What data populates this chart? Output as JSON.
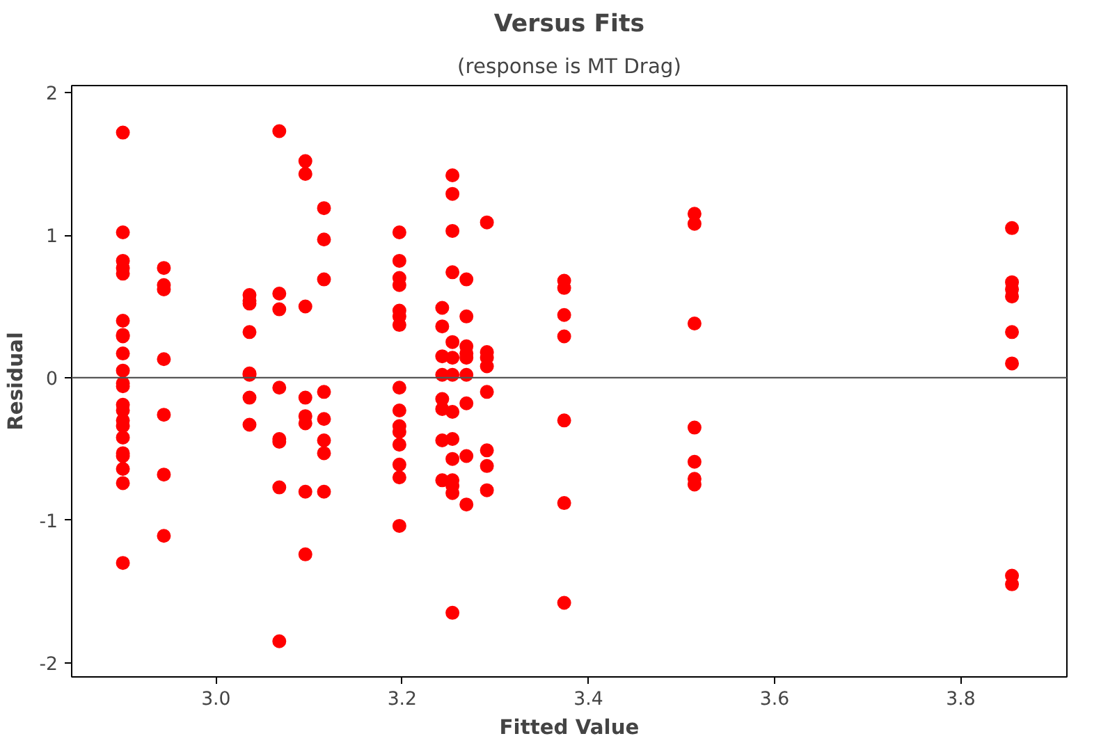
{
  "chart_data": {
    "type": "scatter",
    "title": "Versus Fits",
    "subtitle": "(response is MT Drag)",
    "xlabel": "Fitted Value",
    "ylabel": "Residual",
    "marker": "circle",
    "grid": false,
    "xlim": [
      2.845,
      3.914
    ],
    "ylim": [
      -2.1,
      2.05
    ],
    "xticks": [
      {
        "value": 3,
        "label": "3.0"
      },
      {
        "value": 3.2,
        "label": "3.2"
      },
      {
        "value": 3.4,
        "label": "3.4"
      },
      {
        "value": 3.6,
        "label": "3.6"
      },
      {
        "value": 3.8,
        "label": "3.8"
      }
    ],
    "yticks": [
      -2,
      -1,
      0,
      1,
      2
    ],
    "ref_lines": [
      {
        "axis": "y",
        "value": 0,
        "color": "#555555"
      }
    ],
    "series": [
      {
        "color": "#ff0000",
        "x": [
          2.9,
          2.9,
          2.9,
          2.9,
          2.9,
          2.9,
          2.9,
          2.9,
          2.9,
          2.9,
          2.9,
          2.9,
          2.9,
          2.9,
          2.9,
          2.9,
          2.9,
          2.9,
          2.9,
          2.9,
          2.9,
          2.9,
          2.944,
          2.944,
          2.944,
          2.944,
          2.944,
          2.944,
          2.944,
          3.036,
          3.036,
          3.036,
          3.036,
          3.036,
          3.036,
          3.036,
          3.036,
          3.068,
          3.068,
          3.068,
          3.068,
          3.068,
          3.068,
          3.068,
          3.068,
          3.096,
          3.096,
          3.096,
          3.096,
          3.096,
          3.096,
          3.096,
          3.096,
          3.116,
          3.116,
          3.116,
          3.116,
          3.116,
          3.116,
          3.116,
          3.116,
          3.197,
          3.197,
          3.197,
          3.197,
          3.197,
          3.197,
          3.197,
          3.197,
          3.197,
          3.197,
          3.197,
          3.197,
          3.197,
          3.197,
          3.197,
          3.243,
          3.243,
          3.243,
          3.243,
          3.243,
          3.243,
          3.243,
          3.243,
          3.254,
          3.254,
          3.254,
          3.254,
          3.254,
          3.254,
          3.254,
          3.254,
          3.254,
          3.254,
          3.254,
          3.254,
          3.254,
          3.254,
          3.269,
          3.269,
          3.269,
          3.269,
          3.269,
          3.269,
          3.269,
          3.269,
          3.269,
          3.291,
          3.291,
          3.291,
          3.291,
          3.291,
          3.291,
          3.291,
          3.291,
          3.374,
          3.374,
          3.374,
          3.374,
          3.374,
          3.374,
          3.374,
          3.514,
          3.514,
          3.514,
          3.514,
          3.514,
          3.514,
          3.514,
          3.855,
          3.855,
          3.855,
          3.855,
          3.855,
          3.855,
          3.855,
          3.855
        ],
        "values": [
          1.72,
          1.02,
          0.82,
          0.77,
          0.73,
          0.4,
          0.3,
          0.29,
          0.17,
          0.05,
          -0.04,
          -0.06,
          -0.19,
          -0.23,
          -0.3,
          -0.34,
          -0.42,
          -0.53,
          -0.55,
          -0.64,
          -0.74,
          -1.3,
          0.77,
          0.65,
          0.62,
          0.13,
          -0.26,
          -0.68,
          -1.11,
          0.58,
          0.54,
          0.52,
          0.32,
          0.03,
          0.02,
          -0.14,
          -0.33,
          1.73,
          0.59,
          0.48,
          -0.07,
          -0.43,
          -0.45,
          -0.77,
          -1.85,
          1.52,
          1.43,
          0.5,
          -0.14,
          -0.27,
          -0.32,
          -0.8,
          -1.24,
          1.19,
          0.97,
          0.69,
          -0.1,
          -0.29,
          -0.44,
          -0.53,
          -0.8,
          1.02,
          0.82,
          0.7,
          0.65,
          0.47,
          0.43,
          0.37,
          -0.07,
          -0.23,
          -0.34,
          -0.38,
          -0.47,
          -0.61,
          -0.7,
          -1.04,
          0.49,
          0.36,
          0.15,
          0.02,
          -0.15,
          -0.22,
          -0.44,
          -0.72,
          1.42,
          1.29,
          1.03,
          0.74,
          0.25,
          0.14,
          0.02,
          -0.24,
          -0.43,
          -0.57,
          -0.72,
          -0.76,
          -0.81,
          -1.65,
          0.69,
          0.43,
          0.22,
          0.17,
          0.14,
          0.02,
          -0.18,
          -0.55,
          -0.89,
          1.09,
          0.18,
          0.14,
          0.08,
          -0.1,
          -0.51,
          -0.62,
          -0.79,
          0.68,
          0.63,
          0.44,
          0.29,
          -0.3,
          -0.88,
          -1.58,
          1.15,
          1.08,
          0.38,
          -0.35,
          -0.59,
          -0.71,
          -0.75,
          1.05,
          0.67,
          0.62,
          0.57,
          0.32,
          0.1,
          -1.39,
          -1.45
        ]
      }
    ]
  }
}
